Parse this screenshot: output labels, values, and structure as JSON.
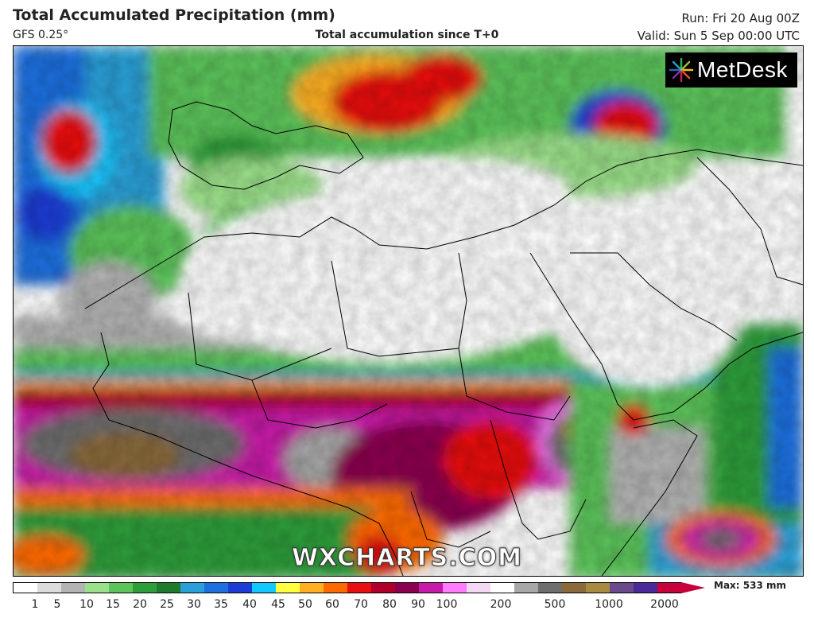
{
  "header": {
    "title": "Total Accumulated Precipitation (mm)",
    "model": "GFS 0.25°",
    "subtitle": "Total accumulation since T+0",
    "run": "Run: Fri 20 Aug 00Z",
    "valid": "Valid: Sun 5 Sep 00:00 UTC"
  },
  "logo": {
    "text": "MetDesk"
  },
  "watermark": "WXCHARTS.COM",
  "legend": {
    "labels": [
      "1",
      "5",
      "10",
      "15",
      "20",
      "25",
      "30",
      "35",
      "40",
      "45",
      "50",
      "60",
      "70",
      "80",
      "90",
      "100",
      "200",
      "500",
      "1000",
      "2000"
    ],
    "max_label": "Max: 533 mm",
    "colors": [
      "#ffffff",
      "#dcdcdc",
      "#b4b4b4",
      "#9be08a",
      "#5cc45a",
      "#2e9e3a",
      "#1f7a2c",
      "#2aa0d8",
      "#1e6fe0",
      "#1c3cd6",
      "#12c8ff",
      "#ffff40",
      "#ffb020",
      "#ff6a00",
      "#e81010",
      "#b0002a",
      "#8c0050",
      "#c81aa8",
      "#ff7cff",
      "#f4d8f4",
      "#ffffff",
      "#a8a8a8",
      "#6e6e6e",
      "#8a6a3a",
      "#a88a40",
      "#6a4a8a",
      "#4a2a9a",
      "#c8003c"
    ]
  }
}
